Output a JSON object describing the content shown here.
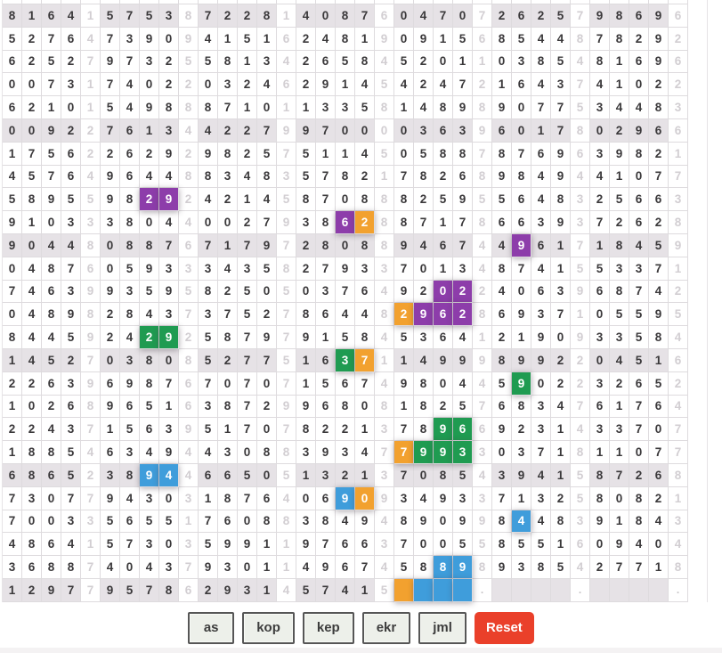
{
  "grid": {
    "columns": 35,
    "group_size": 5,
    "shaded_row_interval": 5,
    "rows": [
      "81641575387228140876047072625798696",
      "52764739094151624819091568544878292",
      "62527973255813426584520110385481696",
      "00731740220324629145424721643741022",
      "62101549888710113358148989077534483",
      "00922761344227997000036396017802966",
      "17562262929825751145058878769639821",
      "45764964488348357821782689849441077",
      "58955982924214587088825955648325663",
      "91033380440027938628871786639372628",
      "90448088767179728088946744961718459",
      "04876059333435827933701348741553371",
      "74639935958250503764920224063968742",
      "04898284373752786448296286937105595",
      "84459242925879791584536412190933584",
      "14527038085277516371149998992204516",
      "22639698767070715674980445902232652",
      "10268965163872996808182576834761764",
      "22437156395170782213789669231433707",
      "18854634944308839347799330371811077",
      "68652389446650513213708543941587268",
      "73077943031876406909349337132580821",
      "70033565517608838494890998448391843",
      "48641573035991197663700558551609404",
      "36887404379301149674588989385427718",
      "12977957862931457415    .    .    ."
    ],
    "empty_placeholder": ".",
    "highlights": {
      "9-8": "purple",
      "9-9": "purple",
      "10-18": "purple",
      "10-19": "orange",
      "11-27": "purple",
      "13-23": "purple",
      "13-24": "purple",
      "14-21": "orange",
      "14-22": "purple",
      "14-23": "purple",
      "14-24": "purple",
      "15-8": "green",
      "15-9": "green",
      "16-18": "green",
      "16-19": "orange",
      "17-27": "green",
      "19-23": "green",
      "19-24": "green",
      "20-21": "orange",
      "20-22": "green",
      "20-23": "green",
      "20-24": "green",
      "21-8": "blue",
      "21-9": "blue",
      "22-18": "blue",
      "22-19": "orange",
      "23-27": "blue",
      "25-23": "blue",
      "25-24": "blue",
      "26-21": "orange",
      "26-22": "blue",
      "26-23": "blue",
      "26-24": "blue"
    },
    "colors": {
      "purple": "#8d3daa",
      "orange": "#f2a12f",
      "green": "#1f9b51",
      "blue": "#3f9ddb",
      "row_shade": "#e6e2e6",
      "dark_text": "#3a383a",
      "light_text": "#d2ced2",
      "cell_border": "#dedbde"
    }
  },
  "toolbar": {
    "buttons": [
      "as",
      "kop",
      "kep",
      "ekr",
      "jml"
    ],
    "reset_label": "Reset",
    "reset_color": "#ea402a"
  }
}
